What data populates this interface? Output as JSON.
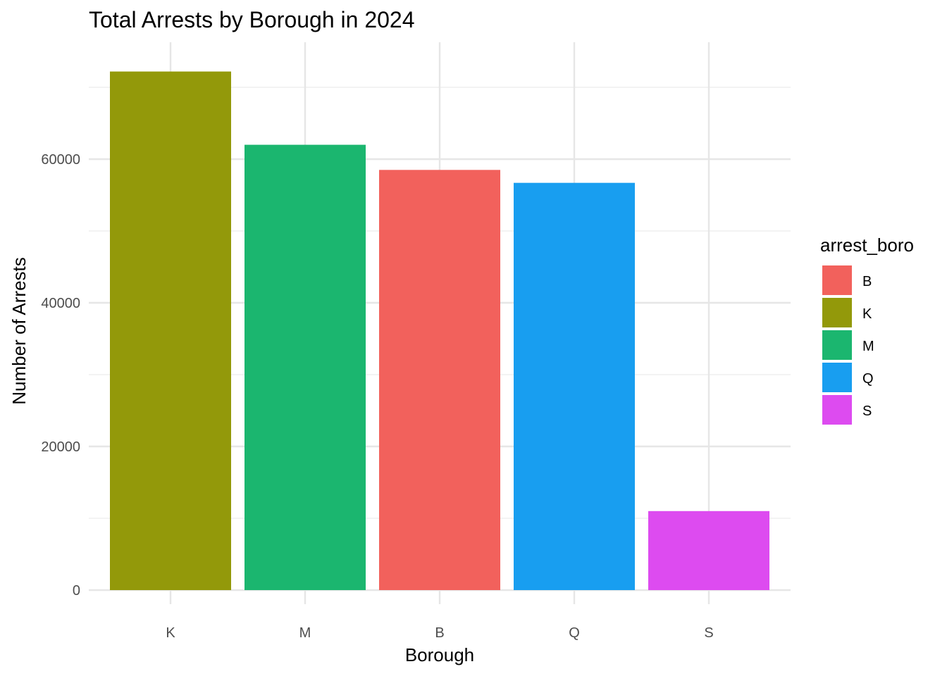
{
  "chart_data": {
    "type": "bar",
    "title": "Total Arrests by Borough in 2024",
    "xlabel": "Borough",
    "ylabel": "Number of Arrests",
    "categories": [
      "K",
      "M",
      "B",
      "Q",
      "S"
    ],
    "values": [
      72200,
      62000,
      58500,
      56700,
      11000
    ],
    "bar_colors": [
      "#93990A",
      "#1BB66F",
      "#F2615C",
      "#189EF0",
      "#DD4BF0"
    ],
    "ylim": [
      0,
      76000
    ],
    "y_ticks": [
      0,
      20000,
      40000,
      60000
    ],
    "y_minor_ticks": [
      10000,
      30000,
      50000,
      70000
    ],
    "grid": true,
    "legend": {
      "title": "arrest_boro",
      "placement": "right",
      "items": [
        {
          "label": "B",
          "color": "#F2615C"
        },
        {
          "label": "K",
          "color": "#93990A"
        },
        {
          "label": "M",
          "color": "#1BB66F"
        },
        {
          "label": "Q",
          "color": "#189EF0"
        },
        {
          "label": "S",
          "color": "#DD4BF0"
        }
      ]
    }
  }
}
